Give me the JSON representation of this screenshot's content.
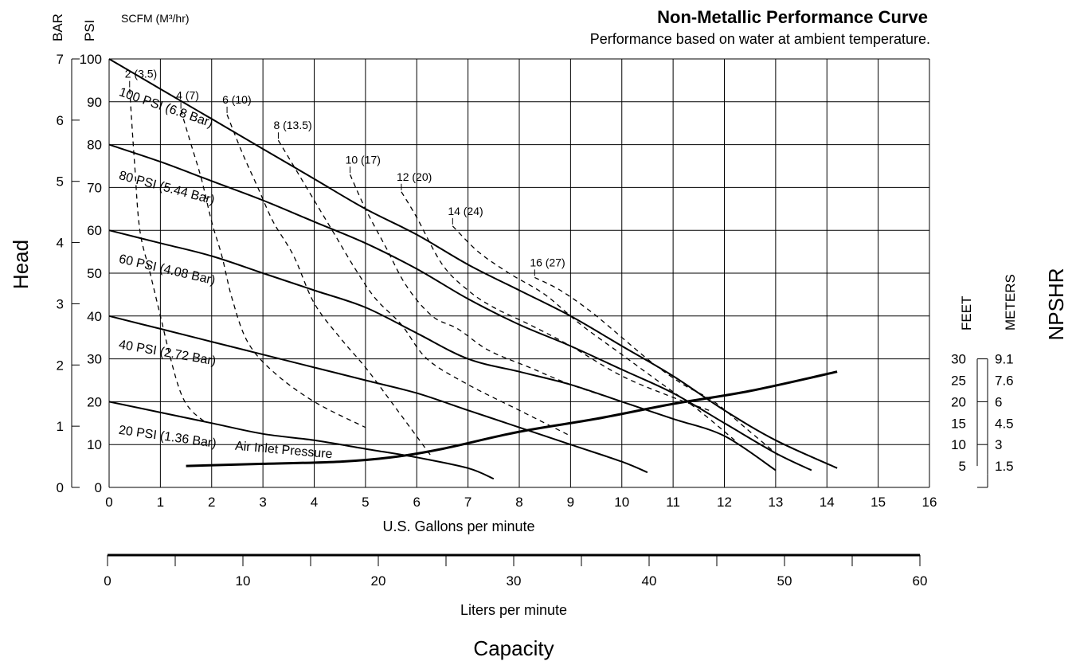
{
  "chart_data": {
    "type": "line",
    "title": "Non-Metallic Performance Curve",
    "subtitle": "Performance based on water at ambient temperature.",
    "xlabel": "U.S. Gallons per minute",
    "xlabel2": "Liters per minute",
    "capacity_label": "Capacity",
    "head_label": "Head",
    "npshr_label": "NPSHR",
    "bar_label": "BAR",
    "psi_label": "PSI",
    "scfm_label": "SCFM (M³/hr)",
    "feet_label": "FEET",
    "meters_label": "METERS",
    "xlim": [
      0,
      16
    ],
    "ylim": [
      0,
      100
    ],
    "grid": true,
    "x_ticks": [
      "0",
      "1",
      "2",
      "3",
      "4",
      "5",
      "6",
      "7",
      "8",
      "9",
      "10",
      "11",
      "12",
      "13",
      "14",
      "15",
      "16"
    ],
    "psi_ticks": [
      "0",
      "10",
      "20",
      "30",
      "40",
      "50",
      "60",
      "70",
      "80",
      "90",
      "100"
    ],
    "bar_ticks": [
      "0",
      "1",
      "2",
      "3",
      "4",
      "5",
      "6",
      "7"
    ],
    "lpm_ticks": [
      "0",
      "10",
      "20",
      "30",
      "40",
      "50",
      "60"
    ],
    "npsh_feet_ticks": [
      "5",
      "10",
      "15",
      "20",
      "25",
      "30"
    ],
    "npsh_meter_ticks": [
      "1.5",
      "3",
      "4.5",
      "6",
      "7.6",
      "9.1"
    ],
    "pressure_curves": [
      {
        "name": "100 PSI (6.8 Bar)",
        "points": [
          [
            0,
            100
          ],
          [
            1,
            93
          ],
          [
            2,
            86
          ],
          [
            3,
            79
          ],
          [
            4,
            72
          ],
          [
            5,
            65
          ],
          [
            6,
            59
          ],
          [
            7,
            52
          ],
          [
            8,
            46
          ],
          [
            9,
            40
          ],
          [
            10,
            33
          ],
          [
            11,
            26
          ],
          [
            12,
            18
          ],
          [
            13,
            11
          ],
          [
            14.2,
            4.5
          ]
        ]
      },
      {
        "name": "80 PSI (5.44 Bar)",
        "points": [
          [
            0,
            80
          ],
          [
            1,
            76
          ],
          [
            2,
            71.5
          ],
          [
            3,
            67
          ],
          [
            4,
            62
          ],
          [
            5,
            57
          ],
          [
            6,
            51
          ],
          [
            7,
            44
          ],
          [
            8,
            38
          ],
          [
            9,
            33
          ],
          [
            10,
            27.5
          ],
          [
            11,
            22
          ],
          [
            12,
            15
          ],
          [
            13,
            8
          ],
          [
            13.7,
            4
          ]
        ]
      },
      {
        "name": "60 PSI (4.08 Bar)",
        "points": [
          [
            0,
            60
          ],
          [
            1,
            57
          ],
          [
            2,
            54
          ],
          [
            3,
            50
          ],
          [
            4,
            46
          ],
          [
            5,
            42
          ],
          [
            6,
            36
          ],
          [
            7,
            30
          ],
          [
            8,
            27
          ],
          [
            9,
            24
          ],
          [
            10,
            20
          ],
          [
            11,
            16
          ],
          [
            12,
            12
          ],
          [
            13,
            4
          ]
        ]
      },
      {
        "name": "40 PSI (2.72 Bar)",
        "points": [
          [
            0,
            40
          ],
          [
            1,
            37
          ],
          [
            2,
            34
          ],
          [
            3,
            31
          ],
          [
            4,
            28
          ],
          [
            5,
            25
          ],
          [
            6,
            22
          ],
          [
            7,
            18
          ],
          [
            8,
            14
          ],
          [
            9,
            10
          ],
          [
            10,
            6
          ],
          [
            10.5,
            3.5
          ]
        ]
      },
      {
        "name": "20 PSI (1.36 Bar)",
        "points": [
          [
            0,
            20
          ],
          [
            1,
            17.5
          ],
          [
            2,
            15
          ],
          [
            3,
            12.5
          ],
          [
            4,
            11
          ],
          [
            5,
            9
          ],
          [
            6,
            7
          ],
          [
            7,
            4.5
          ],
          [
            7.5,
            2
          ]
        ]
      }
    ],
    "air_inlet_label": "Air Inlet Pressure",
    "air_consumption_curves": [
      {
        "label": "2 (3.5)",
        "points": [
          [
            0.4,
            93
          ],
          [
            0.5,
            75
          ],
          [
            0.6,
            60
          ],
          [
            0.8,
            50
          ],
          [
            1.0,
            40
          ],
          [
            1.2,
            30
          ],
          [
            1.4,
            22
          ],
          [
            1.6,
            18
          ],
          [
            1.9,
            15
          ]
        ]
      },
      {
        "label": "4 (7)",
        "points": [
          [
            1.4,
            88
          ],
          [
            1.6,
            80
          ],
          [
            1.8,
            72
          ],
          [
            2.0,
            62
          ],
          [
            2.2,
            54
          ],
          [
            2.4,
            44
          ],
          [
            2.7,
            34
          ],
          [
            3.2,
            27
          ],
          [
            4.0,
            20
          ],
          [
            5.0,
            14
          ]
        ]
      },
      {
        "label": "6 (10)",
        "points": [
          [
            2.3,
            87
          ],
          [
            2.6,
            78
          ],
          [
            2.9,
            70
          ],
          [
            3.2,
            62
          ],
          [
            3.6,
            54
          ],
          [
            4.0,
            43
          ],
          [
            4.5,
            35
          ],
          [
            5.0,
            28
          ],
          [
            5.5,
            20
          ],
          [
            6.3,
            7
          ]
        ]
      },
      {
        "label": "8 (13.5)",
        "points": [
          [
            3.3,
            81
          ],
          [
            3.6,
            75
          ],
          [
            4.0,
            67
          ],
          [
            4.4,
            59
          ],
          [
            4.8,
            51
          ],
          [
            5.2,
            44
          ],
          [
            5.7,
            38
          ],
          [
            6.2,
            30
          ],
          [
            7.0,
            24
          ],
          [
            8.0,
            18
          ],
          [
            9.0,
            12
          ]
        ]
      },
      {
        "label": "10 (17)",
        "points": [
          [
            4.7,
            73
          ],
          [
            5.0,
            65
          ],
          [
            5.4,
            56
          ],
          [
            5.8,
            47
          ],
          [
            6.3,
            40
          ],
          [
            6.8,
            37
          ],
          [
            7.4,
            32
          ],
          [
            8.2,
            28
          ],
          [
            9.0,
            24
          ],
          [
            10.0,
            20
          ],
          [
            11.0,
            16
          ]
        ]
      },
      {
        "label": "12 (20)",
        "points": [
          [
            5.7,
            69
          ],
          [
            6.0,
            63
          ],
          [
            6.5,
            52
          ],
          [
            7.0,
            46
          ],
          [
            7.5,
            42
          ],
          [
            8.2,
            38
          ],
          [
            9.0,
            33
          ],
          [
            10.0,
            26
          ],
          [
            11.0,
            21
          ],
          [
            11.7,
            18
          ]
        ]
      },
      {
        "label": "14 (24)",
        "points": [
          [
            6.7,
            61
          ],
          [
            7.2,
            55
          ],
          [
            7.8,
            50
          ],
          [
            8.5,
            45
          ],
          [
            9.2,
            38
          ],
          [
            10.0,
            31
          ],
          [
            10.8,
            24
          ],
          [
            11.5,
            18
          ],
          [
            12.2,
            11
          ]
        ]
      },
      {
        "label": "16 (27)",
        "points": [
          [
            8.3,
            49
          ],
          [
            8.8,
            46
          ],
          [
            9.4,
            41
          ],
          [
            10.0,
            35
          ],
          [
            10.6,
            29
          ],
          [
            11.2,
            24
          ],
          [
            11.8,
            20
          ],
          [
            12.4,
            14
          ],
          [
            13.1,
            7
          ]
        ]
      }
    ],
    "npshr_curve": {
      "name": "NPSHR",
      "points": [
        [
          1.5,
          5
        ],
        [
          3,
          5.5
        ],
        [
          4.5,
          6
        ],
        [
          5.5,
          7
        ],
        [
          6.5,
          9
        ],
        [
          8,
          13
        ],
        [
          9.5,
          16
        ],
        [
          11,
          19.5
        ],
        [
          12.5,
          22.5
        ],
        [
          14.2,
          27
        ]
      ]
    }
  }
}
